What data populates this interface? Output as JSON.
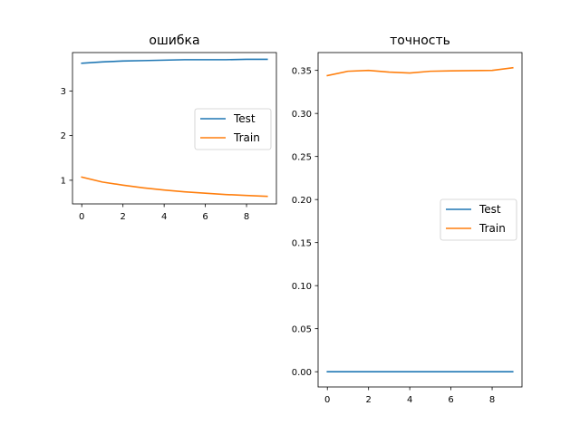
{
  "chart_data": [
    {
      "type": "line",
      "title": "ошибка",
      "xlabel": "",
      "ylabel": "",
      "xlim": [
        -0.45,
        9.45
      ],
      "ylim": [
        0.47,
        3.86
      ],
      "x_ticks": [
        0,
        2,
        4,
        6,
        8
      ],
      "y_ticks": [
        1,
        2,
        3
      ],
      "x_tick_labels": [
        "0",
        "2",
        "4",
        "6",
        "8"
      ],
      "y_tick_labels": [
        "1",
        "2",
        "3"
      ],
      "grid": false,
      "legend": "center-right",
      "x": [
        0,
        1,
        2,
        3,
        4,
        5,
        6,
        7,
        8,
        9
      ],
      "series": [
        {
          "name": "Test",
          "color": "#1f77b4",
          "values": [
            3.62,
            3.65,
            3.67,
            3.68,
            3.69,
            3.7,
            3.7,
            3.7,
            3.71,
            3.71
          ]
        },
        {
          "name": "Train",
          "color": "#ff7f0e",
          "values": [
            1.07,
            0.96,
            0.89,
            0.83,
            0.78,
            0.74,
            0.71,
            0.68,
            0.66,
            0.64
          ]
        }
      ]
    },
    {
      "type": "line",
      "title": "точность",
      "xlabel": "",
      "ylabel": "",
      "xlim": [
        -0.45,
        9.45
      ],
      "ylim": [
        -0.0177,
        0.3707
      ],
      "x_ticks": [
        0,
        2,
        4,
        6,
        8
      ],
      "y_ticks": [
        0.0,
        0.05,
        0.1,
        0.15,
        0.2,
        0.25,
        0.3,
        0.35
      ],
      "x_tick_labels": [
        "0",
        "2",
        "4",
        "6",
        "8"
      ],
      "y_tick_labels": [
        "0.00",
        "0.05",
        "0.10",
        "0.15",
        "0.20",
        "0.25",
        "0.30",
        "0.35"
      ],
      "grid": false,
      "legend": "center-right",
      "x": [
        0,
        1,
        2,
        3,
        4,
        5,
        6,
        7,
        8,
        9
      ],
      "series": [
        {
          "name": "Test",
          "color": "#1f77b4",
          "values": [
            0,
            0,
            0,
            0,
            0,
            0,
            0,
            0,
            0,
            0
          ]
        },
        {
          "name": "Train",
          "color": "#ff7f0e",
          "values": [
            0.344,
            0.349,
            0.35,
            0.348,
            0.347,
            0.349,
            0.3495,
            0.3497,
            0.35,
            0.353
          ]
        }
      ]
    }
  ]
}
